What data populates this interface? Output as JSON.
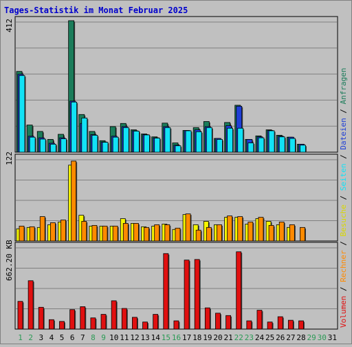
{
  "title": "Tages-Statistik im Monat Februar 2025",
  "colors": {
    "background": "#c0c0c0",
    "plot_bg": "#c0c0c0",
    "grid": "#808080",
    "border": "#000000",
    "title": "#0000cc",
    "anfragen": "#1b7c5a",
    "dateien": "#1f3fd6",
    "seiten": "#12e2f6",
    "besuche": "#f5f500",
    "rechner": "#ff8a00",
    "volumen": "#e01010",
    "weekend": "#2a9a55",
    "weekday": "#000000"
  },
  "chart_data": [
    {
      "type": "bar",
      "panel": "hits",
      "ymax_label": "412",
      "ylim": [
        0,
        412
      ],
      "series": [
        {
          "name": "Anfragen",
          "color_key": "anfragen",
          "values": [
            253,
            85,
            65,
            40,
            56,
            412,
            118,
            65,
            36,
            80,
            90,
            70,
            57,
            48,
            91,
            29,
            68,
            77,
            96,
            43,
            93,
            147,
            40,
            51,
            70,
            53,
            47,
            25,
            0,
            0,
            0
          ]
        },
        {
          "name": "Dateien",
          "color_key": "dateien",
          "values": [
            244,
            50,
            45,
            28,
            45,
            160,
            90,
            55,
            32,
            50,
            80,
            67,
            55,
            45,
            80,
            22,
            68,
            70,
            80,
            43,
            83,
            144,
            40,
            48,
            68,
            50,
            47,
            25,
            0,
            0,
            0
          ]
        },
        {
          "name": "Seiten",
          "color_key": "seiten",
          "values": [
            240,
            47,
            41,
            25,
            42,
            157,
            107,
            53,
            31,
            47,
            77,
            66,
            54,
            44,
            77,
            20,
            67,
            64,
            77,
            40,
            75,
            75,
            29,
            45,
            67,
            48,
            43,
            22,
            0,
            0,
            0
          ]
        }
      ]
    },
    {
      "type": "bar",
      "panel": "visits",
      "ymax_label": "122",
      "ylim": [
        0,
        122
      ],
      "series": [
        {
          "name": "Besuche",
          "color_key": "besuche",
          "values": [
            18,
            20,
            20,
            24,
            28,
            112,
            38,
            22,
            22,
            22,
            33,
            26,
            21,
            22,
            25,
            17,
            39,
            24,
            29,
            24,
            35,
            35,
            25,
            33,
            29,
            24,
            20,
            0,
            0,
            0,
            0
          ]
        },
        {
          "name": "Rechner",
          "color_key": "rechner",
          "values": [
            22,
            21,
            36,
            27,
            31,
            118,
            29,
            23,
            22,
            22,
            26,
            26,
            20,
            24,
            24,
            19,
            40,
            16,
            20,
            24,
            37,
            36,
            28,
            35,
            23,
            28,
            24,
            20,
            0,
            0,
            0
          ]
        }
      ]
    },
    {
      "type": "bar",
      "panel": "volume",
      "ymax_label": "662.20 KB",
      "ylim": [
        0,
        700
      ],
      "series": [
        {
          "name": "Volumen",
          "color_key": "volumen",
          "values": [
            235,
            410,
            185,
            80,
            65,
            165,
            190,
            95,
            125,
            240,
            175,
            100,
            60,
            125,
            640,
            70,
            585,
            590,
            180,
            135,
            115,
            655,
            70,
            160,
            60,
            105,
            75,
            70,
            0,
            0,
            0
          ]
        }
      ]
    }
  ],
  "x_labels": [
    "1",
    "2",
    "3",
    "4",
    "5",
    "6",
    "7",
    "8",
    "9",
    "10",
    "11",
    "12",
    "13",
    "14",
    "15",
    "16",
    "17",
    "18",
    "19",
    "20",
    "21",
    "22",
    "23",
    "24",
    "25",
    "26",
    "27",
    "28",
    "29",
    "30",
    "31"
  ],
  "weekend_days": [
    1,
    2,
    8,
    9,
    15,
    16,
    22,
    23,
    29,
    30
  ],
  "legend": {
    "slash": " / ",
    "anfragen": "Anfragen",
    "dateien": "Dateien",
    "seiten": "Seiten",
    "besuche": "Besuche",
    "rechner": "Rechner",
    "volumen": "Volumen"
  }
}
